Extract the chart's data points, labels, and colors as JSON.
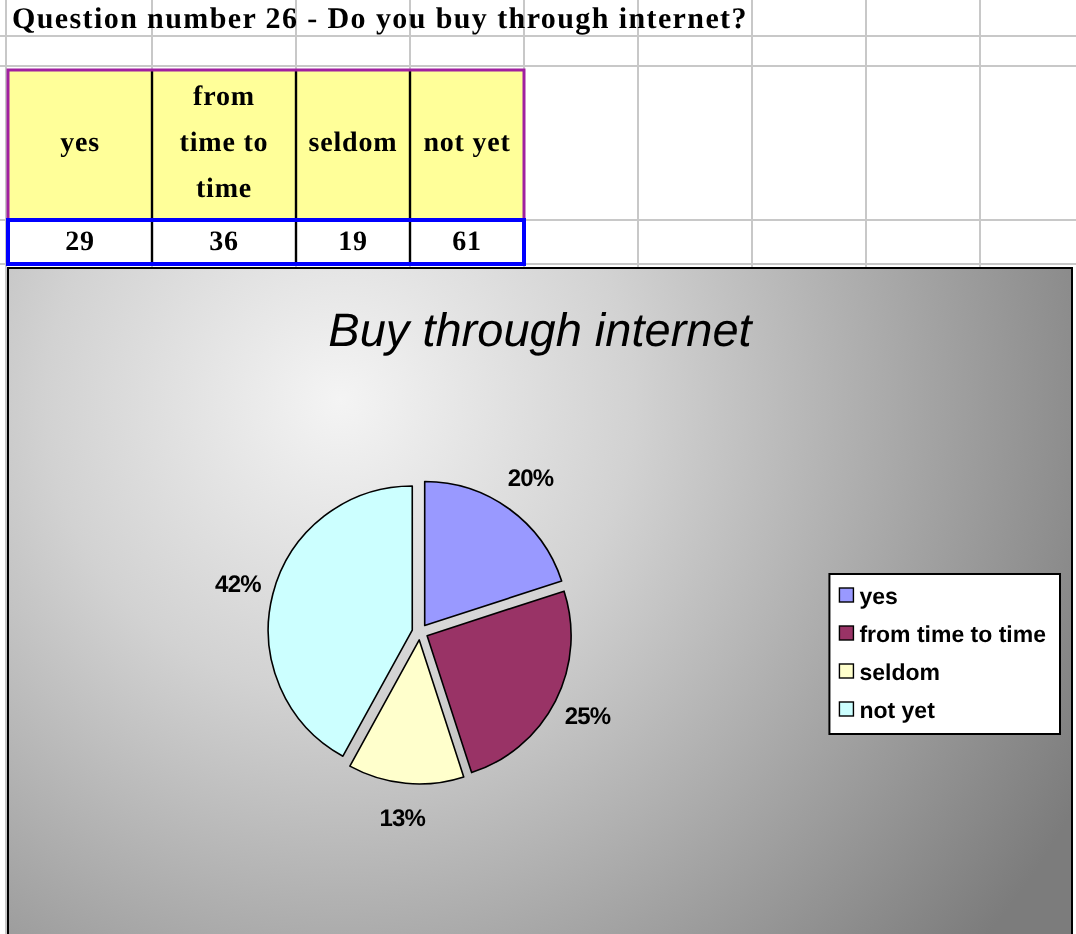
{
  "chart_data": [
    {
      "type": "other",
      "title": "Question number 26 - Do you buy through internet?",
      "categories": [
        "yes",
        "from time to time",
        "seldom",
        "not yet"
      ],
      "values": [
        29,
        36,
        19,
        61
      ],
      "data_labels": true
    },
    {
      "type": "pie",
      "title": "Buy through internet",
      "categories": [
        "yes",
        "from time to time",
        "seldom",
        "not yet"
      ],
      "values": [
        20,
        25,
        13,
        42
      ],
      "colors": [
        "#9999ff",
        "#993366",
        "#ffffcc",
        "#ccffff"
      ],
      "value_labels": [
        "20%",
        "25%",
        "13%",
        "42%"
      ],
      "legend": "right"
    }
  ]
}
